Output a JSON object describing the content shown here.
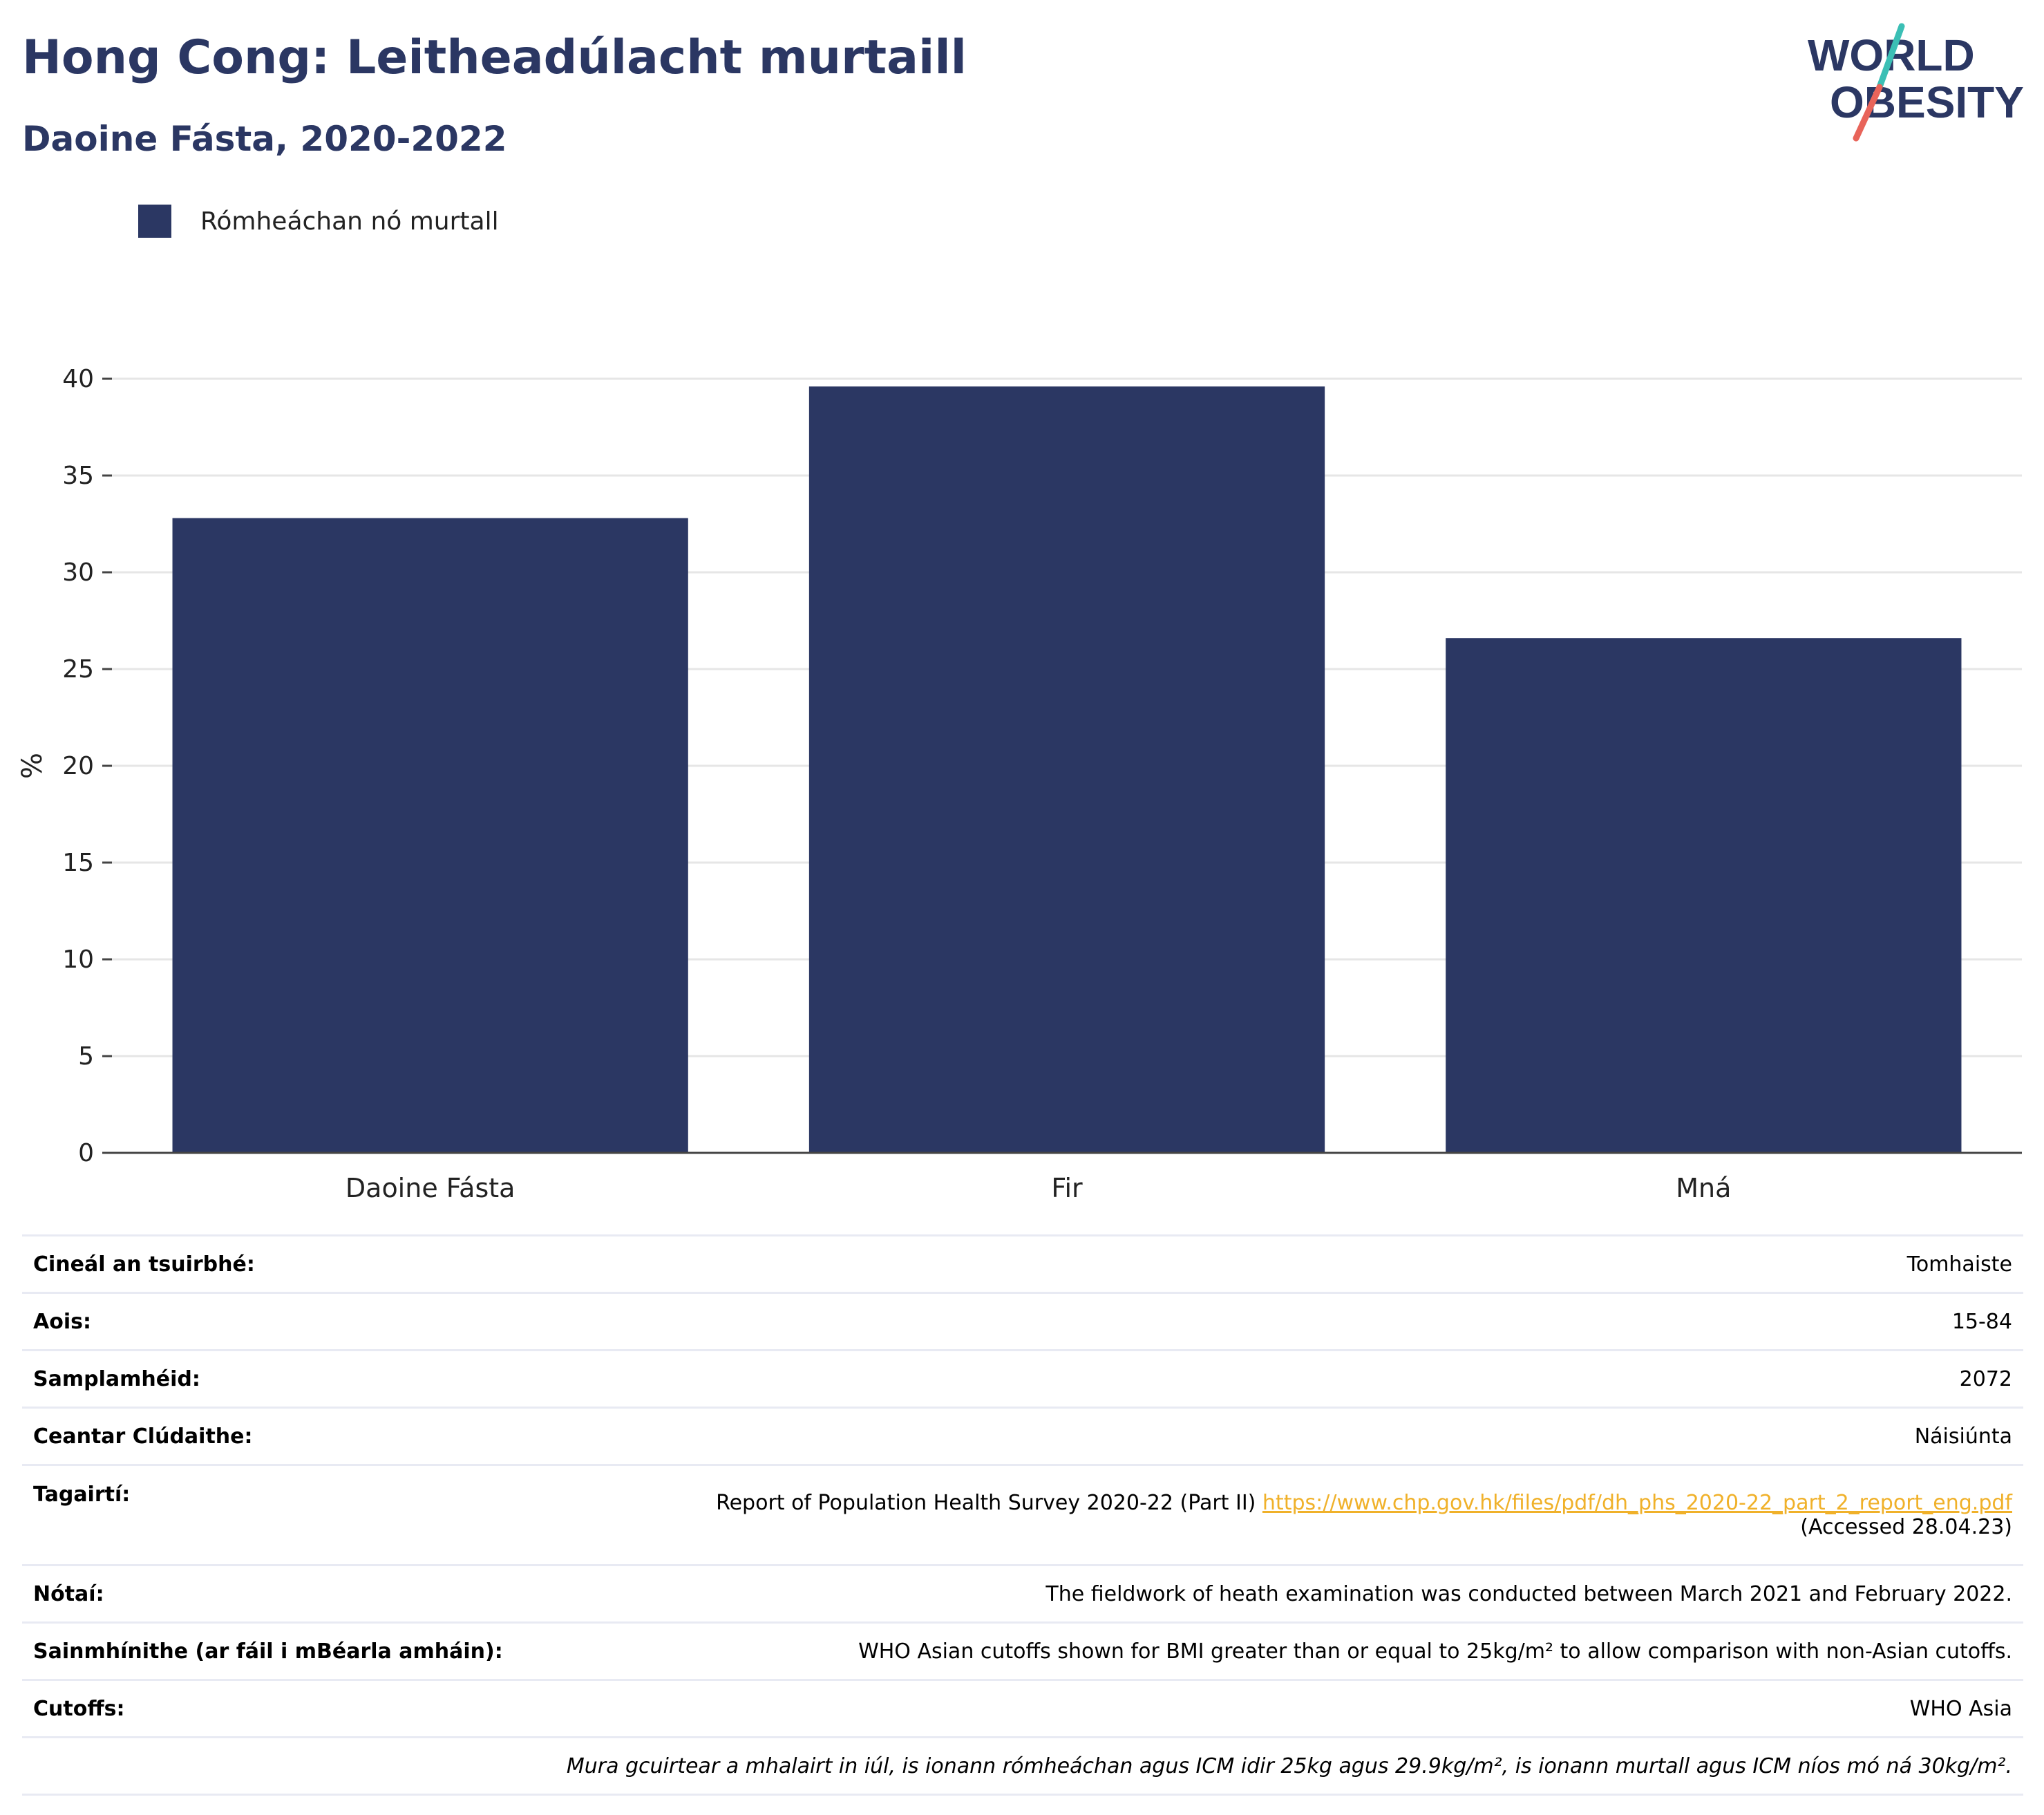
{
  "header": {
    "title": "Hong Cong: Leitheadúlacht murtaill",
    "subtitle": "Daoine Fásta, 2020-2022",
    "logo_line1": "WORLD",
    "logo_line2": "OBESITY"
  },
  "legend": {
    "label": "Rómheáchan nó murtall"
  },
  "colors": {
    "bar": "#2b3763",
    "accent_teal": "#3bbfb5",
    "accent_red": "#e8645a",
    "link": "#f0b12a"
  },
  "chart_data": {
    "type": "bar",
    "categories": [
      "Daoine Fásta",
      "Fir",
      "Mná"
    ],
    "series": [
      {
        "name": "Rómheáchan nó murtall",
        "values": [
          32.8,
          39.6,
          26.6
        ]
      }
    ],
    "ylabel": "%",
    "xlabel": "",
    "ylim": [
      0,
      40
    ],
    "yticks": [
      0,
      5,
      10,
      15,
      20,
      25,
      30,
      35,
      40
    ],
    "grid": true,
    "legend_position": "top-left"
  },
  "info": {
    "rows": [
      {
        "label": "Cineál an tsuirbhé:",
        "value": "Tomhaiste"
      },
      {
        "label": "Aois:",
        "value": "15-84"
      },
      {
        "label": "Samplamhéid:",
        "value": "2072"
      },
      {
        "label": "Ceantar Clúdaithe:",
        "value": "Náisiúnta"
      }
    ],
    "references": {
      "label": "Tagairtí:",
      "text": "Report of Population Health Survey 2020-22 (Part II)",
      "link": "https://www.chp.gov.hk/files/pdf/dh_phs_2020-22_part_2_report_eng.pdf",
      "accessed": "(Accessed 28.04.23)"
    },
    "notes": {
      "label": "Nótaí:",
      "value": "The fieldwork of heath examination was conducted between March 2021 and February 2022."
    },
    "definitions": {
      "label": "Sainmhínithe (ar fáil i mBéarla amháin):",
      "value": "WHO Asian cutoffs shown for BMI greater than or equal to 25kg/m² to allow comparison with non-Asian cutoffs."
    },
    "cutoffs": {
      "label": "Cutoffs:",
      "value": "WHO Asia"
    },
    "footnote": "Mura gcuirtear a mhalairt in iúl, is ionann rómheáchan agus ICM idir 25kg agus 29.9kg/m², is ionann murtall agus ICM níos mó ná 30kg/m²."
  }
}
